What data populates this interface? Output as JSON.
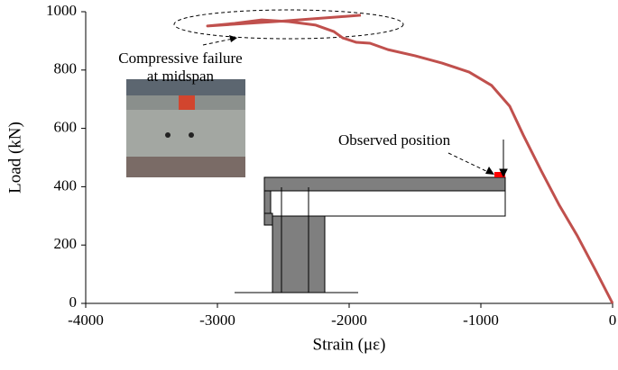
{
  "chart_data": {
    "type": "line",
    "x_label": "Strain (με)",
    "y_label": "Load (kN)",
    "annotations": [
      "Compressive failure",
      "at midspan",
      "Observed position"
    ],
    "series": [
      {
        "color": "#c0504d",
        "x": [
          0,
          -130,
          -267,
          -404,
          -541,
          -678,
          -781,
          -918,
          -1089,
          -1295,
          -1500,
          -1705,
          -1842,
          -1945,
          -2048,
          -2116,
          -2253,
          -2459,
          -2664,
          -2870,
          -3075,
          -2500,
          -1911
        ],
        "values": [
          0,
          114,
          231,
          336,
          454,
          577,
          676,
          747,
          793,
          824,
          849,
          870,
          892,
          895,
          910,
          932,
          954,
          966,
          972,
          960,
          951,
          968,
          988
        ]
      }
    ],
    "xlim": [
      -4000,
      0
    ],
    "xticks": [
      -4000,
      -3000,
      -2000,
      -1000,
      0
    ],
    "ylim": [
      0,
      1000
    ],
    "yticks": [
      0,
      200,
      400,
      600,
      800,
      1000
    ],
    "grid": false
  }
}
